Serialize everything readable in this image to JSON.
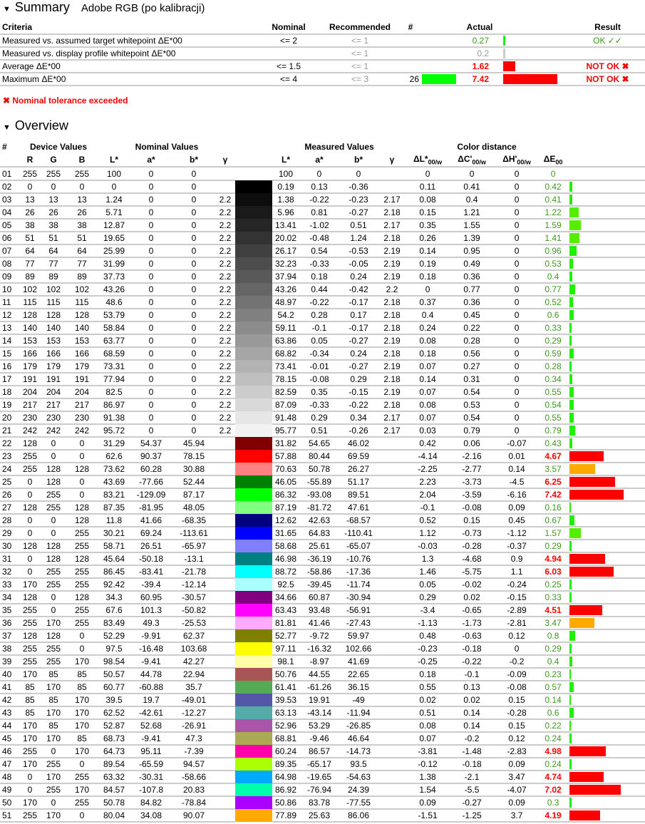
{
  "summary": {
    "title": "Summary",
    "profile": "Adobe RGB (po kalibracji)",
    "headers": {
      "criteria": "Criteria",
      "nominal": "Nominal",
      "recommended": "Recommended",
      "count": "#",
      "actual": "Actual",
      "result": "Result"
    },
    "rows": [
      {
        "criteria": "Measured vs. assumed target whitepoint ΔE*00",
        "nominal": "<= 2",
        "recommended": "<= 1",
        "count": "",
        "actual": "0.27",
        "actual_value": 0.27,
        "status": "ok",
        "result": "OK ✓✓"
      },
      {
        "criteria": "Measured vs. display profile whitepoint ΔE*00",
        "nominal": "",
        "recommended": "<= 1",
        "count": "",
        "actual": "0.2",
        "actual_value": 0.2,
        "status": "info",
        "result": ""
      },
      {
        "criteria": "Average ΔE*00",
        "nominal": "<= 1.5",
        "recommended": "<= 1",
        "count": "",
        "actual": "1.62",
        "actual_value": 1.62,
        "status": "fail",
        "result": "NOT OK ✖"
      },
      {
        "criteria": "Maximum ΔE*00",
        "nominal": "<= 4",
        "recommended": "<= 3",
        "count": "26",
        "count_swatch": "#00ff00",
        "actual": "7.42",
        "actual_value": 7.42,
        "status": "fail",
        "result": "NOT OK ✖"
      }
    ],
    "note": "✖ Nominal tolerance exceeded"
  },
  "overview": {
    "title": "Overview",
    "groups": {
      "num": "#",
      "device": "Device Values",
      "nominal": "Nominal Values",
      "measured": "Measured Values",
      "distance": "Color distance"
    },
    "columns": {
      "r": "R",
      "g": "G",
      "b": "B",
      "L": "L*",
      "a": "a*",
      "bb": "b*",
      "gamma": "γ",
      "dL": "ΔL*",
      "dC": "ΔC'",
      "dH": "ΔH'",
      "dE": "ΔE",
      "sub_w": "00/w",
      "sub": "00"
    },
    "colors": {
      "ok": "#22ee00",
      "warn": "#ffaa00",
      "fail": "#ff0000"
    },
    "rows": [
      [
        "01",
        "255",
        "255",
        "255",
        "100",
        "0",
        "0",
        "",
        "100",
        "0",
        "0",
        "",
        "0",
        "0",
        "0",
        "0"
      ],
      [
        "02",
        "0",
        "0",
        "0",
        "0",
        "0",
        "0",
        "",
        "0.19",
        "0.13",
        "-0.36",
        "",
        "0.11",
        "0.41",
        "0",
        "0.42"
      ],
      [
        "03",
        "13",
        "13",
        "13",
        "1.24",
        "0",
        "0",
        "2.2",
        "1.38",
        "-0.22",
        "-0.23",
        "2.17",
        "0.08",
        "0.4",
        "0",
        "0.41"
      ],
      [
        "04",
        "26",
        "26",
        "26",
        "5.71",
        "0",
        "0",
        "2.2",
        "5.96",
        "0.81",
        "-0.27",
        "2.18",
        "0.15",
        "1.21",
        "0",
        "1.22"
      ],
      [
        "05",
        "38",
        "38",
        "38",
        "12.87",
        "0",
        "0",
        "2.2",
        "13.41",
        "-1.02",
        "0.51",
        "2.17",
        "0.35",
        "1.55",
        "0",
        "1.59"
      ],
      [
        "06",
        "51",
        "51",
        "51",
        "19.65",
        "0",
        "0",
        "2.2",
        "20.02",
        "-0.48",
        "1.24",
        "2.18",
        "0.26",
        "1.39",
        "0",
        "1.41"
      ],
      [
        "07",
        "64",
        "64",
        "64",
        "25.99",
        "0",
        "0",
        "2.2",
        "26.17",
        "0.54",
        "-0.53",
        "2.19",
        "0.14",
        "0.95",
        "0",
        "0.96"
      ],
      [
        "08",
        "77",
        "77",
        "77",
        "31.99",
        "0",
        "0",
        "2.2",
        "32.23",
        "-0.33",
        "-0.05",
        "2.19",
        "0.19",
        "0.49",
        "0",
        "0.53"
      ],
      [
        "09",
        "89",
        "89",
        "89",
        "37.73",
        "0",
        "0",
        "2.2",
        "37.94",
        "0.18",
        "0.24",
        "2.19",
        "0.18",
        "0.36",
        "0",
        "0.4"
      ],
      [
        "10",
        "102",
        "102",
        "102",
        "43.26",
        "0",
        "0",
        "2.2",
        "43.26",
        "0.44",
        "-0.42",
        "2.2",
        "0",
        "0.77",
        "0",
        "0.77"
      ],
      [
        "11",
        "115",
        "115",
        "115",
        "48.6",
        "0",
        "0",
        "2.2",
        "48.97",
        "-0.22",
        "-0.17",
        "2.18",
        "0.37",
        "0.36",
        "0",
        "0.52"
      ],
      [
        "12",
        "128",
        "128",
        "128",
        "53.79",
        "0",
        "0",
        "2.2",
        "54.2",
        "0.28",
        "0.17",
        "2.18",
        "0.4",
        "0.45",
        "0",
        "0.6"
      ],
      [
        "13",
        "140",
        "140",
        "140",
        "58.84",
        "0",
        "0",
        "2.2",
        "59.11",
        "-0.1",
        "-0.17",
        "2.18",
        "0.24",
        "0.22",
        "0",
        "0.33"
      ],
      [
        "14",
        "153",
        "153",
        "153",
        "63.77",
        "0",
        "0",
        "2.2",
        "63.86",
        "0.05",
        "-0.27",
        "2.19",
        "0.08",
        "0.28",
        "0",
        "0.29"
      ],
      [
        "15",
        "166",
        "166",
        "166",
        "68.59",
        "0",
        "0",
        "2.2",
        "68.82",
        "-0.34",
        "0.24",
        "2.18",
        "0.18",
        "0.56",
        "0",
        "0.59"
      ],
      [
        "16",
        "179",
        "179",
        "179",
        "73.31",
        "0",
        "0",
        "2.2",
        "73.41",
        "-0.01",
        "-0.27",
        "2.19",
        "0.07",
        "0.27",
        "0",
        "0.28"
      ],
      [
        "17",
        "191",
        "191",
        "191",
        "77.94",
        "0",
        "0",
        "2.2",
        "78.15",
        "-0.08",
        "0.29",
        "2.18",
        "0.14",
        "0.31",
        "0",
        "0.34"
      ],
      [
        "18",
        "204",
        "204",
        "204",
        "82.5",
        "0",
        "0",
        "2.2",
        "82.59",
        "0.35",
        "-0.15",
        "2.19",
        "0.07",
        "0.54",
        "0",
        "0.55"
      ],
      [
        "19",
        "217",
        "217",
        "217",
        "86.97",
        "0",
        "0",
        "2.2",
        "87.09",
        "-0.33",
        "-0.22",
        "2.18",
        "0.08",
        "0.53",
        "0",
        "0.54"
      ],
      [
        "20",
        "230",
        "230",
        "230",
        "91.38",
        "0",
        "0",
        "2.2",
        "91.48",
        "0.29",
        "0.34",
        "2.17",
        "0.07",
        "0.54",
        "0",
        "0.55"
      ],
      [
        "21",
        "242",
        "242",
        "242",
        "95.72",
        "0",
        "0",
        "2.2",
        "95.77",
        "0.51",
        "-0.26",
        "2.17",
        "0.03",
        "0.79",
        "0",
        "0.79"
      ],
      [
        "22",
        "128",
        "0",
        "0",
        "31.29",
        "54.37",
        "45.94",
        "",
        "31.82",
        "54.65",
        "46.02",
        "",
        "0.42",
        "0.06",
        "-0.07",
        "0.43"
      ],
      [
        "23",
        "255",
        "0",
        "0",
        "62.6",
        "90.37",
        "78.15",
        "",
        "57.88",
        "80.44",
        "69.59",
        "",
        "-4.14",
        "-2.16",
        "0.01",
        "4.67"
      ],
      [
        "24",
        "255",
        "128",
        "128",
        "73.62",
        "60.28",
        "30.88",
        "",
        "70.63",
        "50.78",
        "26.27",
        "",
        "-2.25",
        "-2.77",
        "0.14",
        "3.57"
      ],
      [
        "25",
        "0",
        "128",
        "0",
        "43.69",
        "-77.66",
        "52.44",
        "",
        "46.05",
        "-55.89",
        "51.17",
        "",
        "2.23",
        "-3.73",
        "-4.5",
        "6.25"
      ],
      [
        "26",
        "0",
        "255",
        "0",
        "83.21",
        "-129.09",
        "87.17",
        "",
        "86.32",
        "-93.08",
        "89.51",
        "",
        "2.04",
        "-3.59",
        "-6.16",
        "7.42"
      ],
      [
        "27",
        "128",
        "255",
        "128",
        "87.35",
        "-81.95",
        "48.05",
        "",
        "87.19",
        "-81.72",
        "47.61",
        "",
        "-0.1",
        "-0.08",
        "0.09",
        "0.16"
      ],
      [
        "28",
        "0",
        "0",
        "128",
        "11.8",
        "41.66",
        "-68.35",
        "",
        "12.62",
        "42.63",
        "-68.57",
        "",
        "0.52",
        "0.15",
        "0.45",
        "0.67"
      ],
      [
        "29",
        "0",
        "0",
        "255",
        "30.21",
        "69.24",
        "-113.61",
        "",
        "31.65",
        "64.83",
        "-110.41",
        "",
        "1.12",
        "-0.73",
        "-1.12",
        "1.57"
      ],
      [
        "30",
        "128",
        "128",
        "255",
        "58.71",
        "26.51",
        "-65.97",
        "",
        "58.68",
        "25.61",
        "-65.07",
        "",
        "-0.03",
        "-0.28",
        "-0.37",
        "0.29"
      ],
      [
        "31",
        "0",
        "128",
        "128",
        "45.64",
        "-50.18",
        "-13.1",
        "",
        "46.98",
        "-36.19",
        "-10.76",
        "",
        "1.3",
        "-4.68",
        "0.9",
        "4.94"
      ],
      [
        "32",
        "0",
        "255",
        "255",
        "86.45",
        "-83.41",
        "-21.78",
        "",
        "88.72",
        "-58.86",
        "-17.36",
        "",
        "1.46",
        "-5.75",
        "1.1",
        "6.03"
      ],
      [
        "33",
        "170",
        "255",
        "255",
        "92.42",
        "-39.4",
        "-12.14",
        "",
        "92.5",
        "-39.45",
        "-11.74",
        "",
        "0.05",
        "-0.02",
        "-0.24",
        "0.25"
      ],
      [
        "34",
        "128",
        "0",
        "128",
        "34.3",
        "60.95",
        "-30.57",
        "",
        "34.66",
        "60.87",
        "-30.94",
        "",
        "0.29",
        "0.02",
        "-0.15",
        "0.33"
      ],
      [
        "35",
        "255",
        "0",
        "255",
        "67.6",
        "101.3",
        "-50.82",
        "",
        "63.43",
        "93.48",
        "-56.91",
        "",
        "-3.4",
        "-0.65",
        "-2.89",
        "4.51"
      ],
      [
        "36",
        "255",
        "170",
        "255",
        "83.49",
        "49.3",
        "-25.53",
        "",
        "81.81",
        "41.46",
        "-27.43",
        "",
        "-1.13",
        "-1.73",
        "-2.81",
        "3.47"
      ],
      [
        "37",
        "128",
        "128",
        "0",
        "52.29",
        "-9.91",
        "62.37",
        "",
        "52.77",
        "-9.72",
        "59.97",
        "",
        "0.48",
        "-0.63",
        "0.12",
        "0.8"
      ],
      [
        "38",
        "255",
        "255",
        "0",
        "97.5",
        "-16.48",
        "103.68",
        "",
        "97.11",
        "-16.32",
        "102.66",
        "",
        "-0.23",
        "-0.18",
        "0",
        "0.29"
      ],
      [
        "39",
        "255",
        "255",
        "170",
        "98.54",
        "-9.41",
        "42.27",
        "",
        "98.1",
        "-8.97",
        "41.69",
        "",
        "-0.25",
        "-0.22",
        "-0.2",
        "0.4"
      ],
      [
        "40",
        "170",
        "85",
        "85",
        "50.57",
        "44.78",
        "22.94",
        "",
        "50.76",
        "44.55",
        "22.65",
        "",
        "0.18",
        "-0.1",
        "-0.09",
        "0.23"
      ],
      [
        "41",
        "85",
        "170",
        "85",
        "60.77",
        "-60.88",
        "35.7",
        "",
        "61.41",
        "-61.26",
        "36.15",
        "",
        "0.55",
        "0.13",
        "-0.08",
        "0.57"
      ],
      [
        "42",
        "85",
        "85",
        "170",
        "39.5",
        "19.7",
        "-49.01",
        "",
        "39.53",
        "19.91",
        "-49",
        "",
        "0.02",
        "0.02",
        "0.15",
        "0.14"
      ],
      [
        "43",
        "85",
        "170",
        "170",
        "62.52",
        "-42.61",
        "-12.27",
        "",
        "63.13",
        "-43.14",
        "-11.94",
        "",
        "0.51",
        "0.14",
        "-0.28",
        "0.6"
      ],
      [
        "44",
        "170",
        "85",
        "170",
        "52.87",
        "52.68",
        "-26.91",
        "",
        "52.96",
        "53.29",
        "-26.85",
        "",
        "0.08",
        "0.14",
        "0.15",
        "0.22"
      ],
      [
        "45",
        "170",
        "170",
        "85",
        "68.73",
        "-9.41",
        "47.3",
        "",
        "68.81",
        "-9.46",
        "46.64",
        "",
        "0.07",
        "-0.2",
        "0.12",
        "0.24"
      ],
      [
        "46",
        "255",
        "0",
        "170",
        "64.73",
        "95.11",
        "-7.39",
        "",
        "60.24",
        "86.57",
        "-14.73",
        "",
        "-3.81",
        "-1.48",
        "-2.83",
        "4.98"
      ],
      [
        "47",
        "170",
        "255",
        "0",
        "89.54",
        "-65.59",
        "94.57",
        "",
        "89.35",
        "-65.17",
        "93.5",
        "",
        "-0.12",
        "-0.18",
        "0.09",
        "0.24"
      ],
      [
        "48",
        "0",
        "170",
        "255",
        "63.32",
        "-30.31",
        "-58.66",
        "",
        "64.98",
        "-19.65",
        "-54.63",
        "",
        "1.38",
        "-2.1",
        "3.47",
        "4.74"
      ],
      [
        "49",
        "0",
        "255",
        "170",
        "84.57",
        "-107.8",
        "20.83",
        "",
        "86.92",
        "-76.94",
        "24.39",
        "",
        "1.54",
        "-5.5",
        "-4.07",
        "7.02"
      ],
      [
        "50",
        "170",
        "0",
        "255",
        "50.78",
        "84.82",
        "-78.84",
        "",
        "50.86",
        "83.78",
        "-77.55",
        "",
        "0.09",
        "-0.27",
        "0.09",
        "0.3"
      ],
      [
        "51",
        "255",
        "170",
        "0",
        "80.04",
        "34.08",
        "90.07",
        "",
        "77.89",
        "25.63",
        "86.06",
        "",
        "-1.51",
        "-1.25",
        "3.7",
        "4.19"
      ]
    ]
  }
}
